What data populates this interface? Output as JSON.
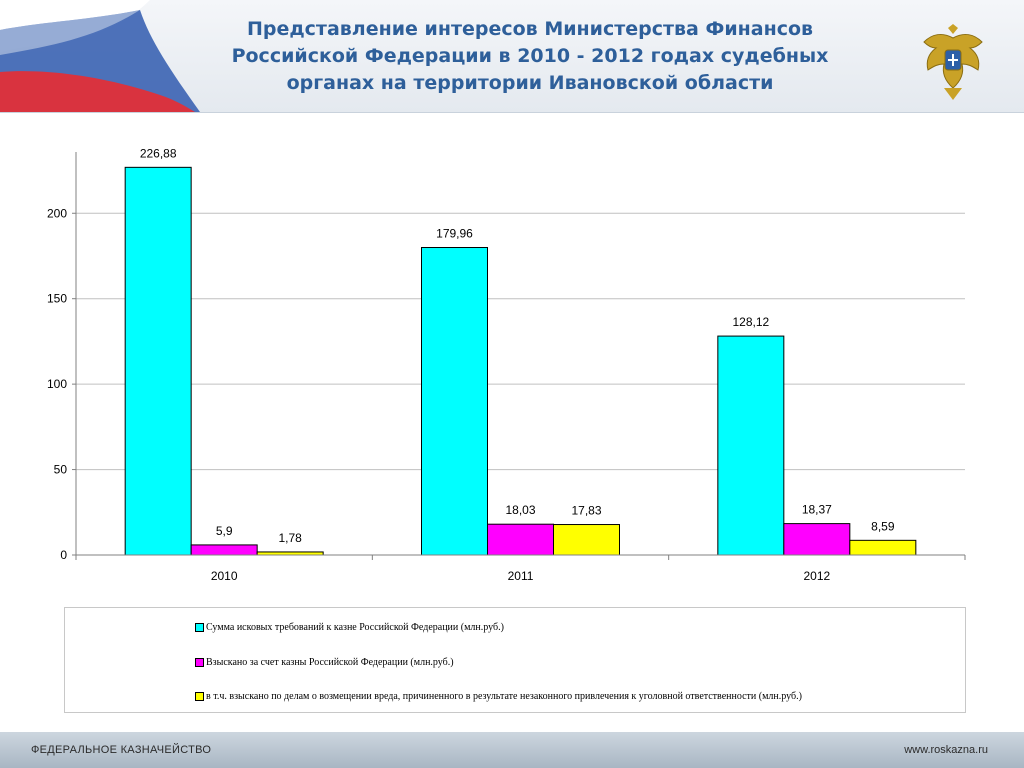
{
  "title": "Представление интересов Министерства Финансов Российской Федерации в 2010 - 2012 годах судебных органах на территории Ивановской области",
  "footer": {
    "organization": "ФЕДЕРАЛЬНОЕ КАЗНАЧЕЙСТВО",
    "website": "www.roskazna.ru"
  },
  "colors": {
    "title": "#2e5f9a",
    "series1": "#00ffff",
    "series2": "#ff00ff",
    "series3": "#ffff00"
  },
  "icons": {
    "emblem": "double-headed-eagle-emblem",
    "flag": "russian-flag-wave"
  },
  "chart_data": {
    "type": "bar",
    "categories": [
      "2010",
      "2011",
      "2012"
    ],
    "series": [
      {
        "name": "Сумма исковых требований к казне Российской Федерации (млн.руб.)",
        "values": [
          226.88,
          179.96,
          128.12
        ],
        "labels": [
          "226,88",
          "179,96",
          "128,12"
        ],
        "color": "#00ffff"
      },
      {
        "name": "Взыскано за счет казны Российской Федерации (млн.руб.)",
        "values": [
          5.9,
          18.03,
          18.37
        ],
        "labels": [
          "5,9",
          "18,03",
          "18,37"
        ],
        "color": "#ff00ff"
      },
      {
        "name": "в т.ч. взыскано по делам о возмещении вреда, причиненного в результате незаконного привлечения к уголовной ответственности  (млн.руб.)",
        "values": [
          1.78,
          17.83,
          8.59
        ],
        "labels": [
          "1,78",
          "17,83",
          "8,59"
        ],
        "color": "#ffff00"
      }
    ],
    "ylim": [
      0,
      230
    ],
    "yticks": [
      0,
      50,
      100,
      150,
      200
    ],
    "grid": true,
    "legend_position": "bottom"
  }
}
